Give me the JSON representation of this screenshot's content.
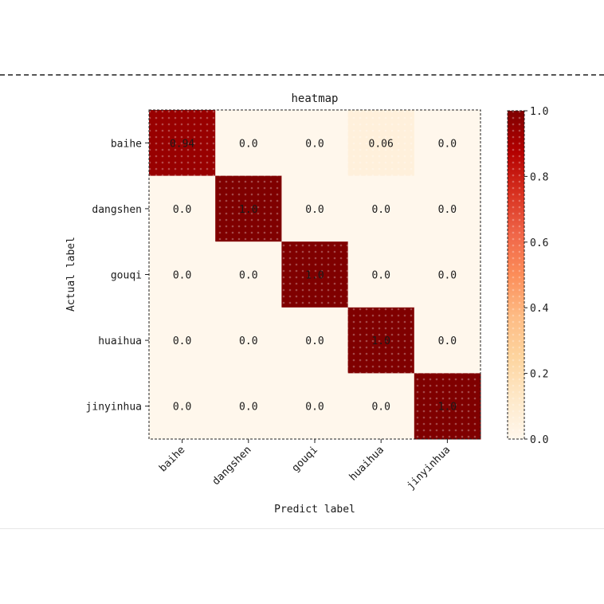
{
  "chart_data": {
    "type": "heatmap",
    "title": "heatmap",
    "xlabel": "Predict label",
    "ylabel": "Actual label",
    "x_categories": [
      "baihe",
      "dangshen",
      "gouqi",
      "huaihua",
      "jinyinhua"
    ],
    "y_categories": [
      "baihe",
      "dangshen",
      "gouqi",
      "huaihua",
      "jinyinhua"
    ],
    "values": [
      [
        0.94,
        0.0,
        0.0,
        0.06,
        0.0
      ],
      [
        0.0,
        1.0,
        0.0,
        0.0,
        0.0
      ],
      [
        0.0,
        0.0,
        1.0,
        0.0,
        0.0
      ],
      [
        0.0,
        0.0,
        0.0,
        1.0,
        0.0
      ],
      [
        0.0,
        0.0,
        0.0,
        0.0,
        1.0
      ]
    ],
    "cell_labels": [
      [
        "0.94",
        "0.0",
        "0.0",
        "0.06",
        "0.0"
      ],
      [
        "0.0",
        "1.0",
        "0.0",
        "0.0",
        "0.0"
      ],
      [
        "0.0",
        "0.0",
        "1.0",
        "0.0",
        "0.0"
      ],
      [
        "0.0",
        "0.0",
        "0.0",
        "1.0",
        "0.0"
      ],
      [
        "0.0",
        "0.0",
        "0.0",
        "0.0",
        "1.0"
      ]
    ],
    "colormap": "OrRd",
    "color_low": "#fff7ec",
    "color_high": "#7f0000",
    "colorbar": {
      "range": [
        0.0,
        1.0
      ],
      "ticks": [
        "0.0",
        "0.2",
        "0.4",
        "0.6",
        "0.8",
        "1.0"
      ]
    },
    "x_tick_rotation": "45 degrees",
    "grid": false
  }
}
